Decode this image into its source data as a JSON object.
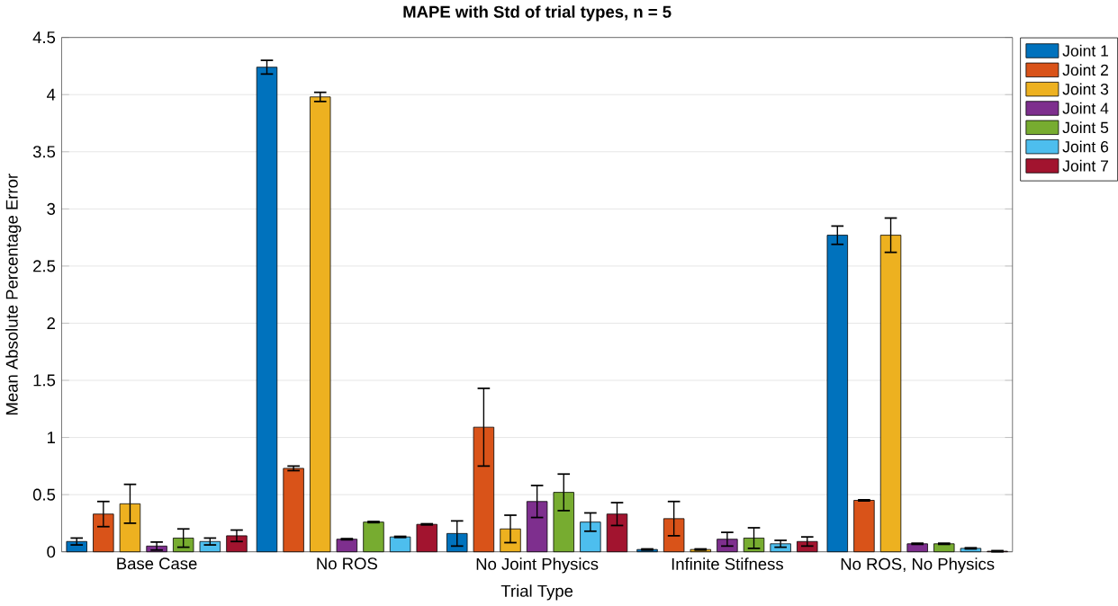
{
  "chart_data": {
    "type": "bar",
    "title": "MAPE with Std of trial types, n = 5",
    "xlabel": "Trial Type",
    "ylabel": "Mean Absolute Percentage Error",
    "categories": [
      "Base Case",
      "No ROS",
      "No Joint Physics",
      "Infinite Stifness",
      "No ROS, No Physics"
    ],
    "ylim": [
      0,
      4.5
    ],
    "yticks": [
      0,
      0.5,
      1,
      1.5,
      2,
      2.5,
      3,
      3.5,
      4,
      4.5
    ],
    "grid": "y",
    "legend": "top right",
    "series": [
      {
        "name": "Joint 1",
        "color": "#0072bd",
        "values": [
          0.09,
          4.24,
          0.16,
          0.02,
          2.77
        ],
        "errors": [
          0.03,
          0.06,
          0.11,
          0.005,
          0.08
        ]
      },
      {
        "name": "Joint 2",
        "color": "#d95319",
        "values": [
          0.33,
          0.73,
          1.09,
          0.29,
          0.45
        ],
        "errors": [
          0.11,
          0.02,
          0.34,
          0.15,
          0.005
        ]
      },
      {
        "name": "Joint 3",
        "color": "#edb120",
        "values": [
          0.42,
          3.98,
          0.2,
          0.02,
          2.77
        ],
        "errors": [
          0.17,
          0.04,
          0.12,
          0.005,
          0.15
        ]
      },
      {
        "name": "Joint 4",
        "color": "#7e2f8e",
        "values": [
          0.05,
          0.11,
          0.44,
          0.11,
          0.07
        ],
        "errors": [
          0.035,
          0.005,
          0.14,
          0.06,
          0.005
        ]
      },
      {
        "name": "Joint 5",
        "color": "#77ac30",
        "values": [
          0.12,
          0.26,
          0.52,
          0.12,
          0.07
        ],
        "errors": [
          0.08,
          0.005,
          0.16,
          0.09,
          0.005
        ]
      },
      {
        "name": "Joint 6",
        "color": "#4dbeee",
        "values": [
          0.09,
          0.13,
          0.26,
          0.07,
          0.03
        ],
        "errors": [
          0.03,
          0.005,
          0.08,
          0.03,
          0.005
        ]
      },
      {
        "name": "Joint 7",
        "color": "#a2142f",
        "values": [
          0.14,
          0.24,
          0.33,
          0.09,
          0.005
        ],
        "errors": [
          0.05,
          0.005,
          0.1,
          0.04,
          0.005
        ]
      }
    ]
  }
}
